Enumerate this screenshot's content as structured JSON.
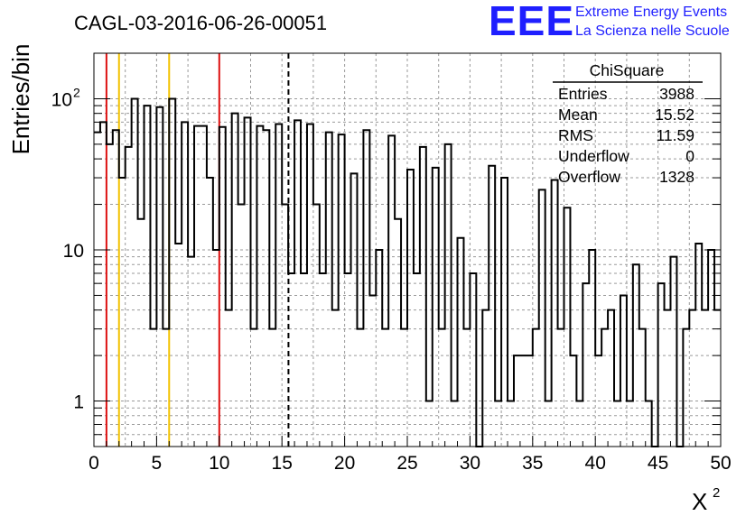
{
  "header": {
    "title": "CAGL-03-2016-06-26-00051",
    "brand_logo": "EEE",
    "brand_line1": "Extreme Energy Events",
    "brand_line2": "La Scienza nelle Scuole",
    "brand_color": "#1f1fff"
  },
  "stats": {
    "title": "ChiSquare",
    "rows": [
      {
        "label": "Entries",
        "value": "3988"
      },
      {
        "label": "Mean",
        "value": "15.52"
      },
      {
        "label": "RMS",
        "value": "11.59"
      },
      {
        "label": "Underflow",
        "value": "0"
      },
      {
        "label": "Overflow",
        "value": "1328"
      }
    ]
  },
  "chart_data": {
    "type": "histogram",
    "title": "CAGL-03-2016-06-26-00051",
    "xlabel": "X",
    "xlabel_sup": "2",
    "ylabel": "Entries/bin",
    "xlim": [
      0,
      50
    ],
    "ylim": [
      0.5,
      200
    ],
    "yscale": "log",
    "grid": true,
    "x_ticks": [
      "0",
      "5",
      "10",
      "15",
      "20",
      "25",
      "30",
      "35",
      "40",
      "45",
      "50"
    ],
    "y_ticks": [
      {
        "value": 1,
        "label": "1",
        "sup": ""
      },
      {
        "value": 10,
        "label": "10",
        "sup": ""
      },
      {
        "value": 100,
        "label": "10",
        "sup": "2"
      }
    ],
    "bin_width": 0.5,
    "bin_start": 0,
    "values": [
      60,
      70,
      50,
      62,
      30,
      48,
      100,
      16,
      90,
      3,
      88,
      3,
      100,
      11,
      70,
      9,
      66,
      66,
      30,
      10,
      65,
      4,
      80,
      20,
      75,
      3,
      66,
      62,
      3,
      68,
      20,
      7,
      72,
      7,
      68,
      20,
      7,
      60,
      4,
      58,
      7,
      32,
      3,
      62,
      5,
      10,
      3,
      57,
      16,
      3,
      34,
      7,
      48,
      1,
      35,
      3,
      50,
      1,
      12,
      3,
      7,
      0.5,
      4,
      36,
      1,
      30,
      1,
      2,
      2,
      2,
      3,
      25,
      1,
      29,
      3,
      19,
      2,
      1,
      6,
      10,
      2,
      3,
      4,
      1,
      5,
      1,
      8,
      3,
      1,
      0.5,
      6,
      4,
      9,
      0.5,
      3,
      4,
      11,
      4,
      10,
      4
    ],
    "colors": {
      "line": "#000000",
      "red": "#dd1111",
      "yellow": "#f2c200",
      "mean": "#000000"
    },
    "vlines": [
      {
        "x": 1,
        "color": "#dd1111",
        "style": "solid"
      },
      {
        "x": 2,
        "color": "#f2c200",
        "style": "solid"
      },
      {
        "x": 6,
        "color": "#f2c200",
        "style": "solid"
      },
      {
        "x": 10,
        "color": "#dd1111",
        "style": "solid"
      },
      {
        "x": 15.52,
        "color": "#000000",
        "style": "dashed"
      }
    ]
  }
}
